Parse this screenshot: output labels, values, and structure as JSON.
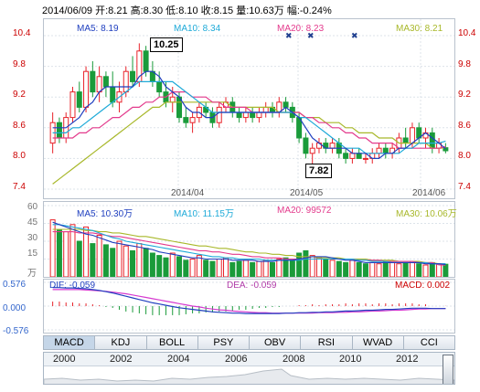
{
  "header": {
    "quote_line": "2014/06/09 开:8.21  高:8.30  低:8.10  收:8.15  量:10.63万  幅:-0.24%"
  },
  "price_panel": {
    "legend": {
      "ma5": "MA5: 8.19",
      "ma10": "MA10: 8.34",
      "ma20": "MA20: 8.23",
      "ma30": "MA30: 8.21"
    },
    "y_ticks": [
      "10.4",
      "9.8",
      "9.2",
      "8.6",
      "8.0",
      "7.4"
    ],
    "x_ticks": [
      "2014/04",
      "2014/05",
      "2014/06"
    ],
    "high_marker": "10.25",
    "low_marker": "7.82"
  },
  "volume_panel": {
    "legend": {
      "ma5": "MA5: 10.30万",
      "ma10": "MA10: 11.15万",
      "ma20": "MA20: 99572",
      "ma30": "MA30: 10.06万"
    },
    "y_ticks": [
      "60",
      "45",
      "30",
      "15",
      "万"
    ]
  },
  "macd_panel": {
    "legend": {
      "dif": "DIF: -0.059",
      "dea": "DEA: -0.059",
      "macd": "MACD: 0.002"
    },
    "y_ticks": [
      "0.576",
      "0.000",
      "-0.576"
    ]
  },
  "indicator_tabs": [
    "MACD",
    "KDJ",
    "BOLL",
    "PSY",
    "OBV",
    "RSI",
    "WVAD",
    "CCI"
  ],
  "timeline": {
    "years": [
      "2000",
      "2002",
      "2004",
      "2006",
      "2008",
      "2010",
      "2012"
    ]
  },
  "colors": {
    "up": "#e8232a",
    "down": "#1a9b3a",
    "ma5": "#1f3fbf",
    "ma10": "#1eaad8",
    "ma20": "#e33a8c",
    "ma30": "#a8b82a",
    "axis_label": "#cc0000"
  },
  "chart_data": [
    {
      "type": "candlestick",
      "panel": "price",
      "ylim": [
        7.4,
        10.4
      ],
      "y_ticks": [
        10.4,
        9.8,
        9.2,
        8.6,
        8.0,
        7.4
      ],
      "x_tick_labels": [
        "2014/04",
        "2014/05",
        "2014/06"
      ],
      "candles": [
        [
          8.3,
          8.9,
          8.1,
          8.7
        ],
        [
          8.7,
          8.8,
          8.3,
          8.4
        ],
        [
          8.4,
          8.9,
          8.3,
          8.8
        ],
        [
          8.8,
          9.4,
          8.7,
          9.3
        ],
        [
          9.3,
          9.5,
          8.9,
          9.0
        ],
        [
          9.0,
          9.8,
          8.9,
          9.7
        ],
        [
          9.7,
          9.9,
          9.2,
          9.3
        ],
        [
          9.3,
          9.8,
          9.1,
          9.6
        ],
        [
          9.6,
          9.7,
          9.2,
          9.4
        ],
        [
          9.4,
          9.7,
          9.0,
          9.1
        ],
        [
          9.1,
          9.5,
          8.9,
          9.3
        ],
        [
          9.3,
          9.8,
          9.2,
          9.7
        ],
        [
          9.7,
          10.0,
          9.4,
          9.5
        ],
        [
          9.5,
          10.25,
          9.4,
          10.1
        ],
        [
          10.1,
          10.2,
          9.6,
          9.7
        ],
        [
          9.7,
          9.9,
          9.4,
          9.5
        ],
        [
          9.5,
          9.7,
          9.2,
          9.3
        ],
        [
          9.3,
          9.5,
          9.0,
          9.1
        ],
        [
          9.1,
          9.4,
          8.9,
          9.2
        ],
        [
          9.2,
          9.3,
          8.7,
          8.8
        ],
        [
          8.8,
          9.0,
          8.6,
          8.7
        ],
        [
          8.7,
          8.9,
          8.5,
          8.8
        ],
        [
          8.8,
          9.1,
          8.7,
          9.0
        ],
        [
          9.0,
          9.1,
          8.8,
          8.9
        ],
        [
          8.9,
          9.0,
          8.6,
          8.7
        ],
        [
          8.7,
          9.1,
          8.6,
          9.0
        ],
        [
          9.0,
          9.2,
          8.9,
          9.1
        ],
        [
          9.1,
          9.2,
          8.8,
          8.9
        ],
        [
          8.9,
          9.0,
          8.7,
          8.8
        ],
        [
          8.8,
          9.0,
          8.7,
          8.9
        ],
        [
          8.9,
          9.0,
          8.7,
          8.8
        ],
        [
          8.8,
          9.0,
          8.7,
          8.9
        ],
        [
          8.9,
          9.1,
          8.8,
          9.0
        ],
        [
          9.0,
          9.1,
          8.8,
          8.9
        ],
        [
          8.9,
          9.2,
          8.8,
          9.1
        ],
        [
          9.1,
          9.2,
          8.9,
          9.0
        ],
        [
          9.0,
          9.1,
          8.7,
          8.8
        ],
        [
          8.8,
          8.9,
          8.3,
          8.4
        ],
        [
          8.4,
          8.5,
          8.0,
          8.1
        ],
        [
          8.1,
          8.3,
          7.82,
          8.2
        ],
        [
          8.2,
          8.4,
          8.1,
          8.3
        ],
        [
          8.3,
          8.4,
          8.1,
          8.2
        ],
        [
          8.2,
          8.4,
          8.1,
          8.3
        ],
        [
          8.3,
          8.4,
          8.0,
          8.1
        ],
        [
          8.1,
          8.2,
          7.9,
          8.0
        ],
        [
          8.0,
          8.2,
          7.9,
          8.1
        ],
        [
          8.1,
          8.2,
          8.0,
          8.0
        ],
        [
          8.0,
          8.1,
          7.9,
          8.0
        ],
        [
          8.0,
          8.2,
          7.9,
          8.1
        ],
        [
          8.1,
          8.3,
          8.0,
          8.2
        ],
        [
          8.2,
          8.3,
          8.0,
          8.1
        ],
        [
          8.1,
          8.3,
          8.0,
          8.2
        ],
        [
          8.2,
          8.5,
          8.1,
          8.4
        ],
        [
          8.4,
          8.6,
          8.2,
          8.3
        ],
        [
          8.3,
          8.7,
          8.2,
          8.6
        ],
        [
          8.6,
          8.7,
          8.3,
          8.4
        ],
        [
          8.4,
          8.6,
          8.2,
          8.5
        ],
        [
          8.5,
          8.6,
          8.1,
          8.2
        ],
        [
          8.2,
          8.4,
          8.1,
          8.3
        ],
        [
          8.21,
          8.3,
          8.1,
          8.15
        ]
      ],
      "ma5": [
        8.6,
        8.6,
        8.6,
        8.7,
        8.8,
        9.0,
        9.1,
        9.3,
        9.4,
        9.4,
        9.4,
        9.4,
        9.4,
        9.6,
        9.7,
        9.7,
        9.6,
        9.4,
        9.3,
        9.2,
        9.0,
        8.9,
        8.9,
        8.8,
        8.8,
        8.9,
        8.9,
        8.9,
        8.9,
        8.9,
        8.9,
        8.9,
        8.9,
        8.9,
        8.9,
        9.0,
        8.9,
        8.8,
        8.6,
        8.4,
        8.3,
        8.2,
        8.2,
        8.2,
        8.2,
        8.1,
        8.1,
        8.1,
        8.0,
        8.0,
        8.1,
        8.1,
        8.2,
        8.2,
        8.3,
        8.4,
        8.5,
        8.4,
        8.3,
        8.19
      ],
      "ma10": [
        8.5,
        8.5,
        8.5,
        8.6,
        8.6,
        8.7,
        8.8,
        8.9,
        9.0,
        9.1,
        9.2,
        9.3,
        9.4,
        9.5,
        9.5,
        9.5,
        9.5,
        9.5,
        9.5,
        9.4,
        9.3,
        9.2,
        9.1,
        9.0,
        8.9,
        8.9,
        8.9,
        8.9,
        8.9,
        8.9,
        8.9,
        8.9,
        8.9,
        8.9,
        8.9,
        8.9,
        8.9,
        8.8,
        8.8,
        8.7,
        8.6,
        8.5,
        8.4,
        8.3,
        8.2,
        8.2,
        8.2,
        8.1,
        8.1,
        8.1,
        8.1,
        8.1,
        8.1,
        8.2,
        8.2,
        8.3,
        8.3,
        8.3,
        8.3,
        8.34
      ],
      "ma20": [
        8.4,
        8.4,
        8.4,
        8.4,
        8.5,
        8.5,
        8.6,
        8.6,
        8.7,
        8.8,
        8.8,
        8.9,
        9.0,
        9.0,
        9.1,
        9.1,
        9.2,
        9.2,
        9.3,
        9.3,
        9.3,
        9.2,
        9.2,
        9.2,
        9.1,
        9.1,
        9.0,
        9.0,
        9.0,
        9.0,
        8.9,
        8.9,
        8.9,
        8.9,
        8.9,
        8.9,
        8.9,
        8.9,
        8.8,
        8.8,
        8.7,
        8.7,
        8.6,
        8.6,
        8.5,
        8.5,
        8.4,
        8.4,
        8.3,
        8.3,
        8.3,
        8.3,
        8.2,
        8.2,
        8.2,
        8.2,
        8.2,
        8.2,
        8.2,
        8.23
      ],
      "ma30": [
        7.5,
        7.6,
        7.7,
        7.8,
        7.9,
        8.0,
        8.1,
        8.2,
        8.3,
        8.4,
        8.5,
        8.6,
        8.7,
        8.8,
        8.9,
        9.0,
        9.0,
        9.1,
        9.1,
        9.1,
        9.1,
        9.1,
        9.1,
        9.1,
        9.1,
        9.1,
        9.1,
        9.0,
        9.0,
        9.0,
        9.0,
        9.0,
        9.0,
        9.0,
        8.9,
        8.9,
        8.9,
        8.9,
        8.8,
        8.8,
        8.8,
        8.7,
        8.7,
        8.7,
        8.6,
        8.6,
        8.5,
        8.5,
        8.5,
        8.4,
        8.4,
        8.4,
        8.3,
        8.3,
        8.3,
        8.3,
        8.3,
        8.2,
        8.2,
        8.21
      ]
    },
    {
      "type": "bar",
      "panel": "volume",
      "unit": "万",
      "ylim": [
        0,
        60
      ],
      "y_ticks": [
        60,
        45,
        30,
        15
      ],
      "values": [
        48,
        40,
        38,
        44,
        30,
        42,
        28,
        35,
        27,
        24,
        30,
        26,
        22,
        28,
        24,
        20,
        18,
        16,
        20,
        17,
        14,
        15,
        18,
        14,
        13,
        15,
        16,
        12,
        13,
        14,
        12,
        13,
        14,
        12,
        15,
        16,
        14,
        20,
        22,
        18,
        16,
        15,
        14,
        13,
        12,
        14,
        12,
        11,
        12,
        11,
        13,
        12,
        11,
        12,
        13,
        11,
        10,
        12,
        11,
        10.63
      ],
      "up": [
        1,
        0,
        1,
        1,
        0,
        1,
        0,
        1,
        0,
        0,
        1,
        1,
        0,
        1,
        0,
        0,
        0,
        0,
        1,
        0,
        0,
        1,
        1,
        0,
        0,
        1,
        1,
        0,
        0,
        1,
        0,
        1,
        1,
        0,
        1,
        0,
        0,
        0,
        0,
        1,
        1,
        0,
        1,
        0,
        0,
        1,
        0,
        0,
        1,
        1,
        0,
        1,
        1,
        0,
        1,
        0,
        1,
        0,
        1,
        0
      ],
      "ma5": [
        46,
        44,
        42,
        40,
        38,
        36,
        35,
        33,
        31,
        29,
        28,
        27,
        26,
        25,
        24,
        23,
        21,
        20,
        19,
        18,
        17,
        16,
        16,
        15,
        15,
        15,
        15,
        14,
        14,
        14,
        14,
        13,
        13,
        13,
        14,
        14,
        14,
        15,
        16,
        17,
        17,
        17,
        16,
        15,
        14,
        14,
        13,
        12,
        12,
        12,
        12,
        12,
        12,
        12,
        12,
        12,
        11,
        11,
        11,
        10.3
      ],
      "ma10": [
        44,
        44,
        43,
        42,
        41,
        40,
        39,
        37,
        35,
        33,
        32,
        30,
        29,
        28,
        27,
        26,
        25,
        24,
        23,
        22,
        21,
        20,
        19,
        18,
        17,
        17,
        16,
        16,
        15,
        15,
        15,
        15,
        14,
        14,
        14,
        14,
        14,
        14,
        15,
        15,
        15,
        15,
        15,
        15,
        15,
        15,
        14,
        14,
        13,
        13,
        13,
        12,
        12,
        12,
        12,
        12,
        12,
        11,
        11,
        11.15
      ],
      "ma20": [
        38,
        38,
        38,
        38,
        37,
        37,
        37,
        36,
        35,
        34,
        34,
        33,
        32,
        31,
        30,
        29,
        28,
        27,
        26,
        25,
        24,
        23,
        22,
        22,
        21,
        21,
        20,
        19,
        19,
        18,
        17,
        17,
        16,
        16,
        16,
        15,
        15,
        15,
        15,
        15,
        15,
        15,
        15,
        15,
        15,
        15,
        14,
        14,
        14,
        14,
        13,
        13,
        13,
        13,
        13,
        12,
        12,
        12,
        10,
        9.96
      ],
      "ma30": [
        40,
        40,
        40,
        40,
        40,
        39,
        39,
        38,
        38,
        37,
        37,
        36,
        35,
        34,
        34,
        33,
        32,
        31,
        30,
        29,
        28,
        27,
        26,
        26,
        25,
        24,
        24,
        23,
        22,
        21,
        21,
        20,
        20,
        19,
        19,
        18,
        18,
        17,
        17,
        17,
        16,
        16,
        16,
        16,
        15,
        15,
        15,
        15,
        14,
        14,
        14,
        14,
        13,
        13,
        13,
        13,
        12,
        12,
        11,
        10.06
      ]
    },
    {
      "type": "line",
      "panel": "macd",
      "ylim": [
        -0.576,
        0.576
      ],
      "y_ticks": [
        0.576,
        0.0,
        -0.576
      ],
      "dif": [
        0.45,
        0.45,
        0.44,
        0.44,
        0.43,
        0.42,
        0.4,
        0.38,
        0.35,
        0.32,
        0.28,
        0.24,
        0.2,
        0.16,
        0.12,
        0.08,
        0.05,
        0.02,
        -0.01,
        -0.04,
        -0.06,
        -0.08,
        -0.1,
        -0.12,
        -0.14,
        -0.15,
        -0.16,
        -0.17,
        -0.17,
        -0.18,
        -0.18,
        -0.18,
        -0.18,
        -0.18,
        -0.18,
        -0.17,
        -0.17,
        -0.16,
        -0.16,
        -0.15,
        -0.15,
        -0.14,
        -0.14,
        -0.13,
        -0.12,
        -0.12,
        -0.11,
        -0.1,
        -0.1,
        -0.09,
        -0.08,
        -0.08,
        -0.07,
        -0.06,
        -0.05,
        -0.05,
        -0.05,
        -0.06,
        -0.06,
        -0.059
      ],
      "dea": [
        0.4,
        0.4,
        0.4,
        0.4,
        0.4,
        0.39,
        0.38,
        0.37,
        0.36,
        0.34,
        0.32,
        0.3,
        0.27,
        0.24,
        0.21,
        0.18,
        0.15,
        0.12,
        0.09,
        0.06,
        0.03,
        0.0,
        -0.02,
        -0.05,
        -0.07,
        -0.09,
        -0.1,
        -0.12,
        -0.13,
        -0.14,
        -0.15,
        -0.16,
        -0.16,
        -0.17,
        -0.17,
        -0.17,
        -0.17,
        -0.17,
        -0.17,
        -0.17,
        -0.16,
        -0.16,
        -0.16,
        -0.15,
        -0.15,
        -0.14,
        -0.14,
        -0.13,
        -0.12,
        -0.12,
        -0.11,
        -0.1,
        -0.1,
        -0.09,
        -0.08,
        -0.07,
        -0.07,
        -0.06,
        -0.06,
        -0.059
      ],
      "macd": [
        0.05,
        0.05,
        0.04,
        0.04,
        0.03,
        0.03,
        0.02,
        0.01,
        -0.01,
        -0.02,
        -0.04,
        -0.06,
        -0.07,
        -0.08,
        -0.09,
        -0.1,
        -0.1,
        -0.1,
        -0.1,
        -0.1,
        -0.09,
        -0.08,
        -0.08,
        -0.07,
        -0.07,
        -0.06,
        -0.06,
        -0.05,
        -0.04,
        -0.04,
        -0.03,
        -0.02,
        -0.02,
        -0.01,
        -0.01,
        0.0,
        0.0,
        0.01,
        0.01,
        0.02,
        0.01,
        0.02,
        0.02,
        0.02,
        0.03,
        0.02,
        0.03,
        0.03,
        0.02,
        0.03,
        0.03,
        0.02,
        0.03,
        0.03,
        0.03,
        0.02,
        0.02,
        0.0,
        0.0,
        0.002
      ]
    }
  ]
}
